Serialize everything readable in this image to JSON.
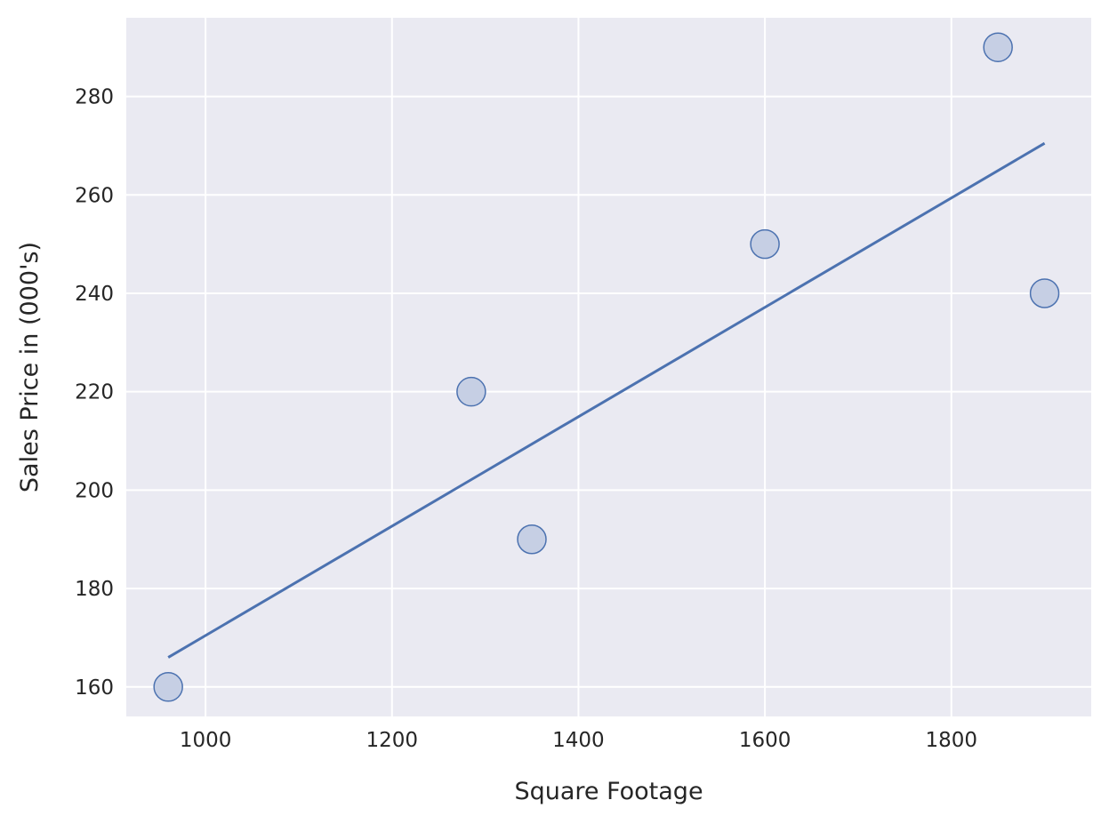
{
  "chart_data": {
    "type": "scatter",
    "title": "",
    "xlabel": "Square Footage",
    "ylabel": "Sales Price in (000's)",
    "xlim": [
      915,
      1950
    ],
    "ylim": [
      154,
      296
    ],
    "xticks": [
      1000,
      1200,
      1400,
      1600,
      1800
    ],
    "yticks": [
      160,
      180,
      200,
      220,
      240,
      260,
      280
    ],
    "grid": true,
    "colors": {
      "background": "#eaeaf2",
      "grid": "#ffffff",
      "line": "#4c72b0",
      "point_fill": "#c6cfe4",
      "point_edge": "#4c72b0",
      "text": "#262626"
    },
    "series": [
      {
        "type": "scatter",
        "x": [
          960,
          1285,
          1350,
          1600,
          1850,
          1900
        ],
        "y": [
          160,
          220,
          190,
          250,
          290,
          240
        ]
      },
      {
        "type": "line",
        "x": [
          960,
          1900
        ],
        "y": [
          166,
          270.5
        ]
      }
    ]
  }
}
